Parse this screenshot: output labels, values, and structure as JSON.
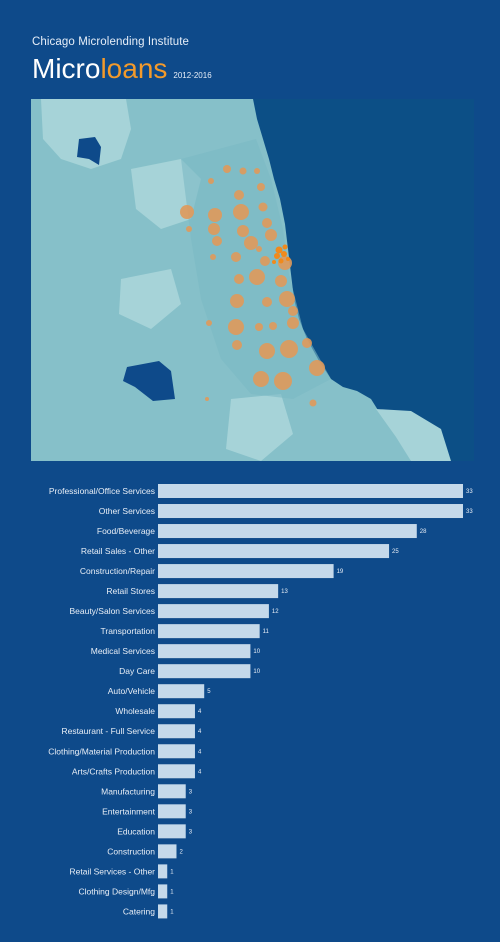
{
  "header": {
    "org": "Chicago Microlending Institute",
    "title_part1": "Micro",
    "title_part2": "loans",
    "years": "2012-2016"
  },
  "colors": {
    "background": "#0e4a8a",
    "accent": "#f39a2b",
    "bar": "#c5d9ea",
    "land": "#86c0c9",
    "water": "#0c4f86"
  },
  "map": {
    "type": "bubble-map"
  },
  "chart_data": {
    "type": "bar",
    "orientation": "horizontal",
    "categories": [
      "Professional/Office Services",
      "Other Services",
      "Food/Beverage",
      "Retail Sales - Other",
      "Construction/Repair",
      "Retail Stores",
      "Beauty/Salon Services",
      "Transportation",
      "Medical Services",
      "Day Care",
      "Auto/Vehicle",
      "Wholesale",
      "Restaurant - Full Service",
      "Clothing/Material Production",
      "Arts/Crafts Production",
      "Manufacturing",
      "Entertainment",
      "Education",
      "Construction",
      "Retail Services - Other",
      "Clothing Design/Mfg",
      "Catering"
    ],
    "values": [
      33,
      33,
      28,
      25,
      19,
      13,
      12,
      11,
      10,
      10,
      5,
      4,
      4,
      4,
      4,
      3,
      3,
      3,
      2,
      1,
      1,
      1
    ],
    "xlim": [
      0,
      33
    ],
    "grid": false,
    "legend": "none"
  }
}
